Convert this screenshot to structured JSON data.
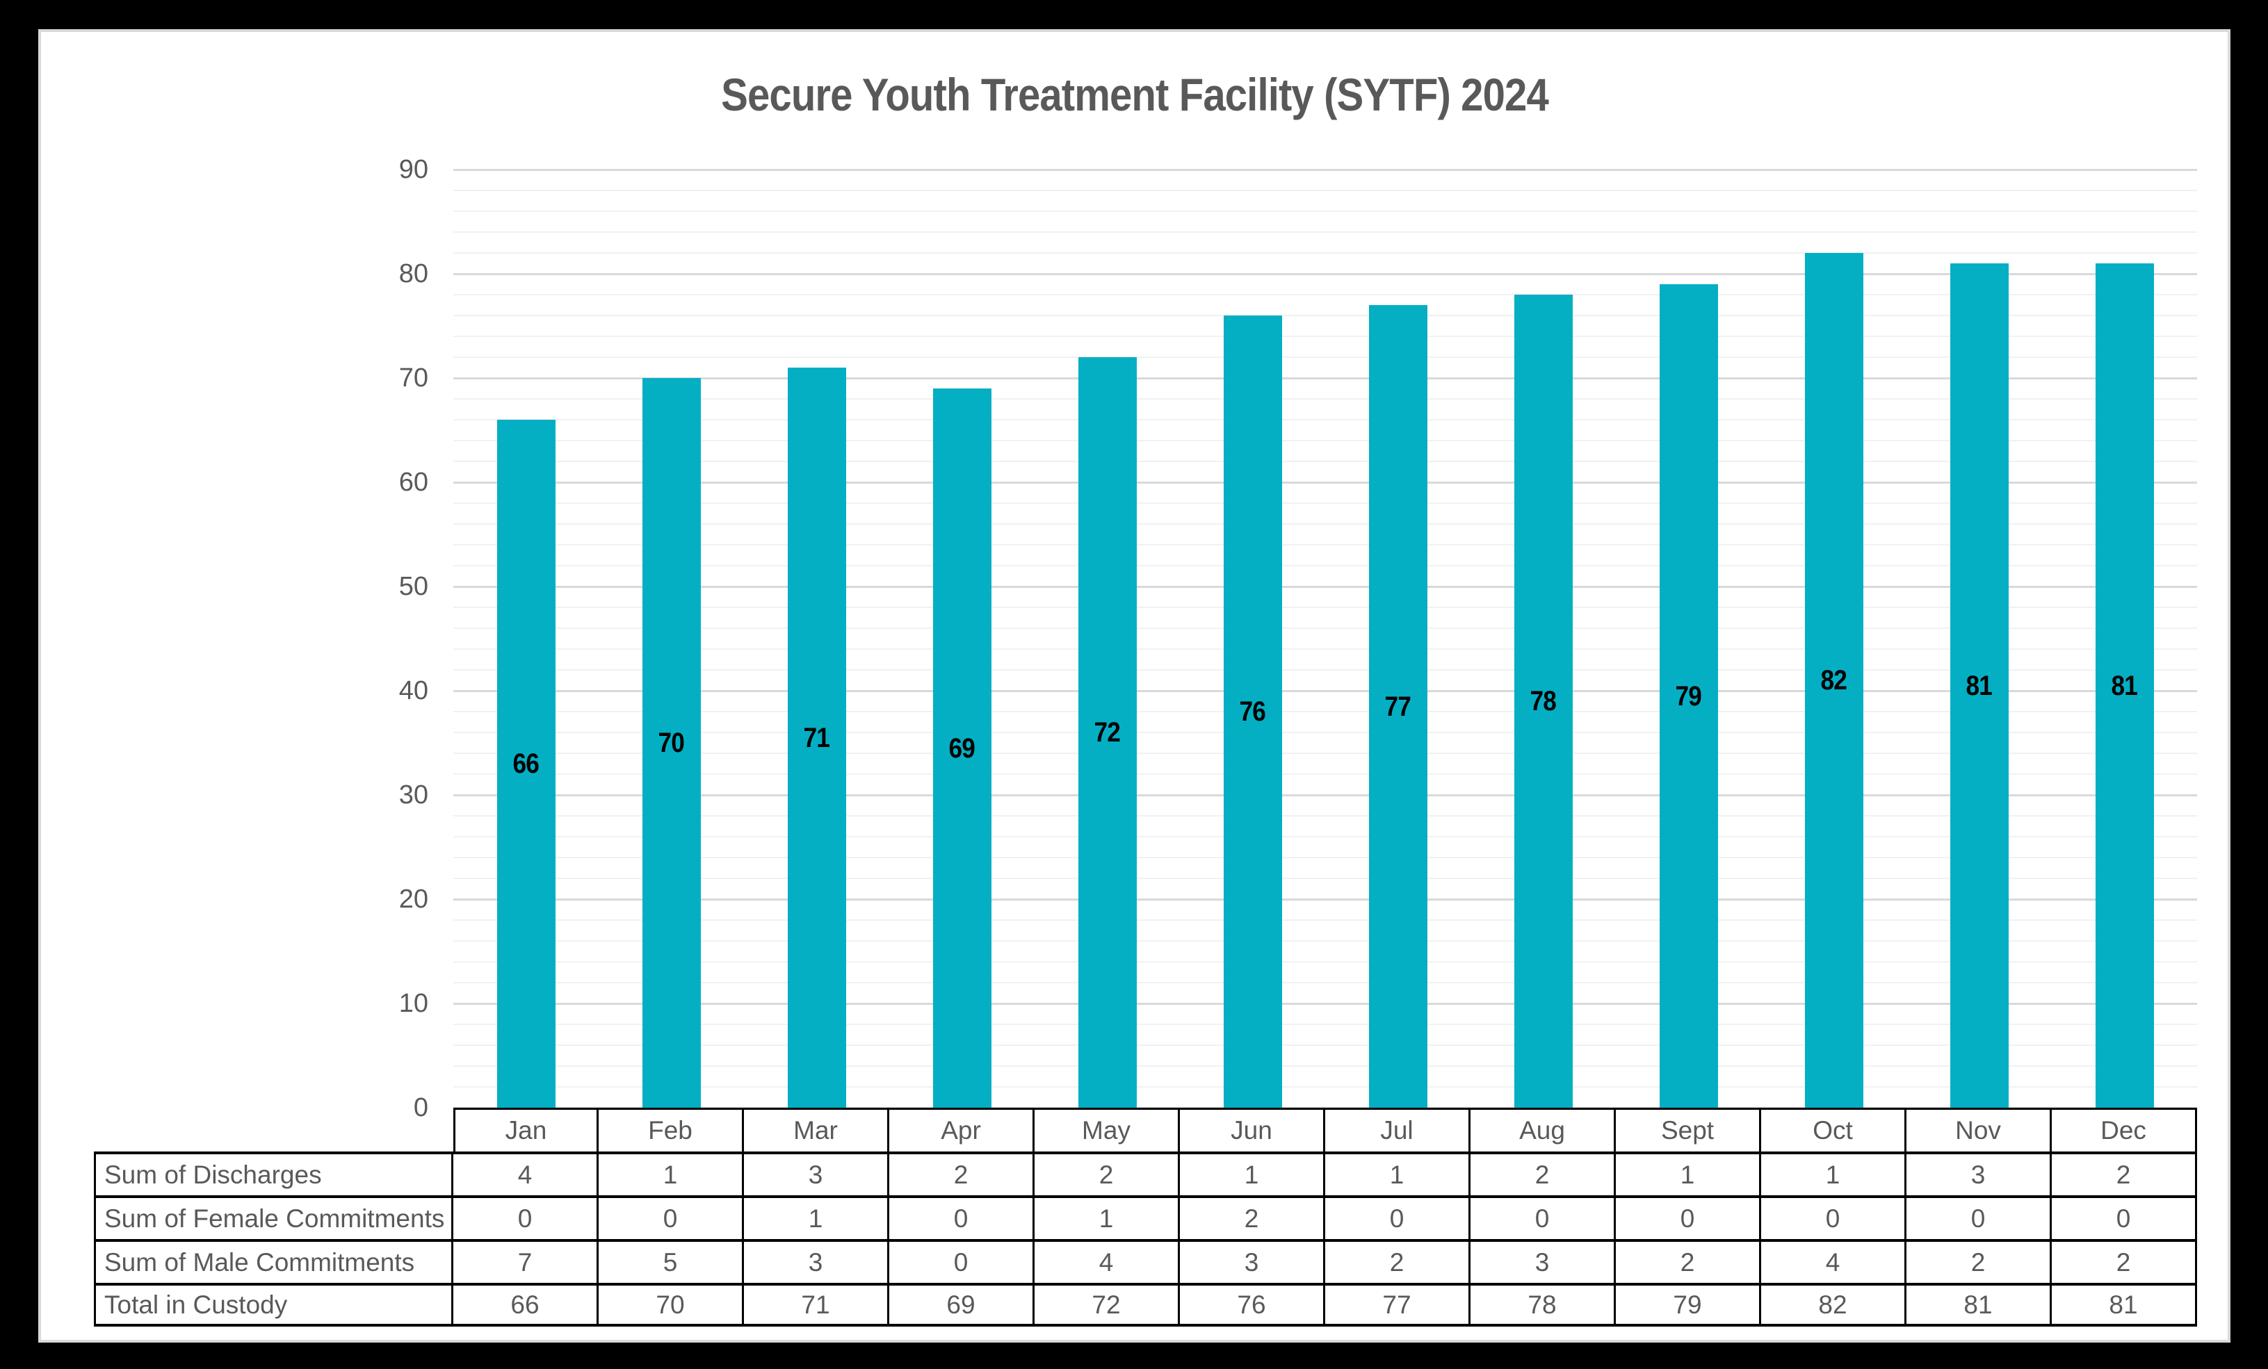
{
  "title": "Secure Youth Treatment Facility (SYTF) 2024",
  "chart_data": {
    "type": "bar",
    "title": "Secure Youth Treatment Facility (SYTF) 2024",
    "categories": [
      "Jan",
      "Feb",
      "Mar",
      "Apr",
      "May",
      "Jun",
      "Jul",
      "Aug",
      "Sept",
      "Oct",
      "Nov",
      "Dec"
    ],
    "series": [
      {
        "name": "Total in Custody",
        "values": [
          66,
          70,
          71,
          69,
          72,
          76,
          77,
          78,
          79,
          82,
          81,
          81
        ]
      }
    ],
    "data_labels": [
      66,
      70,
      71,
      69,
      72,
      76,
      77,
      78,
      79,
      82,
      81,
      81
    ],
    "xlabel": "",
    "ylabel": "",
    "ylim": [
      0,
      90
    ],
    "yticks": [
      0,
      10,
      20,
      30,
      40,
      50,
      60,
      70,
      80,
      90
    ],
    "ytick_step": 10,
    "yminor_step": 2,
    "grid": true,
    "legend_position": "none",
    "bar_color": "#04afc4",
    "bar_label_color": "#000000"
  },
  "table": {
    "header": [
      "Jan",
      "Feb",
      "Mar",
      "Apr",
      "May",
      "Jun",
      "Jul",
      "Aug",
      "Sept",
      "Oct",
      "Nov",
      "Dec"
    ],
    "rows": [
      {
        "label": "Sum of Discharges",
        "values": [
          4,
          1,
          3,
          2,
          2,
          1,
          1,
          2,
          1,
          1,
          3,
          2
        ]
      },
      {
        "label": "Sum of Female Commitments",
        "values": [
          0,
          0,
          1,
          0,
          1,
          2,
          0,
          0,
          0,
          0,
          0,
          0
        ]
      },
      {
        "label": "Sum of Male Commitments",
        "values": [
          7,
          5,
          3,
          0,
          4,
          3,
          2,
          3,
          2,
          4,
          2,
          2
        ]
      },
      {
        "label": "Total in Custody",
        "values": [
          66,
          70,
          71,
          69,
          72,
          76,
          77,
          78,
          79,
          82,
          81,
          81
        ]
      }
    ]
  },
  "colors": {
    "page_background": "#000000",
    "panel_background": "#ffffff",
    "panel_border": "#d9d9d9",
    "title_text": "#595959",
    "axis_text": "#595959",
    "table_text": "#595959",
    "table_border": "#000000",
    "major_gridline": "#d9d9d9",
    "minor_gridline": "#f1f1f1",
    "bar": "#04afc4",
    "bar_label": "#000000"
  }
}
